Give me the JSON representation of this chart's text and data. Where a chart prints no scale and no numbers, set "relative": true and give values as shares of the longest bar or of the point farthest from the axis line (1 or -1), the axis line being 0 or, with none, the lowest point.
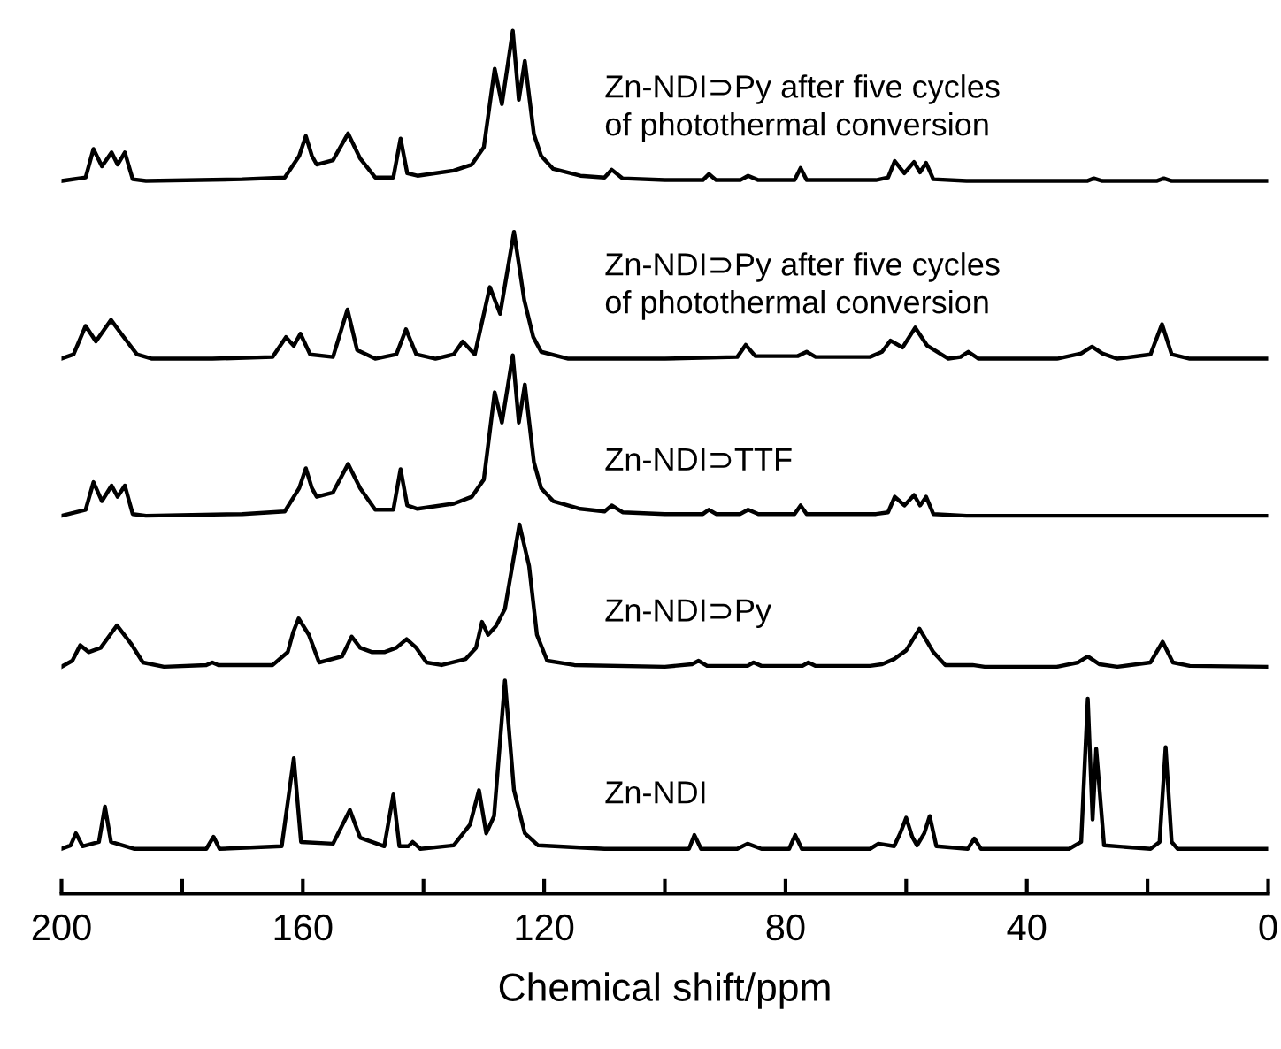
{
  "chart_data": {
    "type": "line",
    "relative": true,
    "xlabel": "Chemical shift/ppm",
    "xlim": [
      200,
      0
    ],
    "xticks": [
      200,
      {
        "value": 180,
        "label": null
      },
      160,
      {
        "value": 140,
        "label": null
      },
      120,
      {
        "value": 100,
        "label": null
      },
      80,
      {
        "value": 60,
        "label": null
      },
      40,
      {
        "value": 20,
        "label": null
      },
      0
    ],
    "legend": false,
    "grid": false,
    "marker": "none",
    "line_style": "solid",
    "series": [
      {
        "name": "Zn-NDI",
        "color": "#000000",
        "x": [
          200,
          198.5,
          197.6,
          196.5,
          193.8,
          192.8,
          191.8,
          188,
          176,
          174.8,
          173.8,
          163.5,
          161.5,
          160.3,
          155,
          152.2,
          150.5,
          146.5,
          145,
          144,
          142.5,
          141.8,
          140.5,
          135,
          132.3,
          130.8,
          129.6,
          128.3,
          126.5,
          125,
          123.2,
          121,
          110,
          96,
          95.1,
          94,
          88,
          86.3,
          84,
          79.4,
          78.4,
          77.3,
          66,
          64.6,
          62,
          61,
          60,
          59,
          58.2,
          57,
          56.1,
          55,
          49.8,
          48.7,
          47.6,
          33,
          31,
          29.9,
          29.1,
          28.5,
          27.2,
          19.5,
          18,
          17,
          16,
          15,
          0
        ],
        "values": [
          0.052,
          0.056,
          0.07,
          0.055,
          0.06,
          0.101,
          0.06,
          0.052,
          0.052,
          0.066,
          0.052,
          0.055,
          0.157,
          0.06,
          0.058,
          0.097,
          0.065,
          0.055,
          0.115,
          0.055,
          0.055,
          0.06,
          0.052,
          0.056,
          0.08,
          0.12,
          0.07,
          0.09,
          0.247,
          0.12,
          0.07,
          0.056,
          0.052,
          0.052,
          0.068,
          0.052,
          0.052,
          0.058,
          0.052,
          0.052,
          0.068,
          0.052,
          0.052,
          0.058,
          0.055,
          0.07,
          0.088,
          0.066,
          0.056,
          0.07,
          0.09,
          0.055,
          0.052,
          0.064,
          0.052,
          0.052,
          0.06,
          0.226,
          0.086,
          0.168,
          0.056,
          0.052,
          0.06,
          0.17,
          0.06,
          0.052,
          0.052
        ]
      },
      {
        "name": "Zn-NDI⊃Py",
        "color": "#000000",
        "x": [
          200,
          198.2,
          196.9,
          195.5,
          193.5,
          190.8,
          188.5,
          186.5,
          183,
          176,
          175,
          174,
          165,
          162.5,
          161.6,
          160.7,
          159,
          157.3,
          153.5,
          151.9,
          150.5,
          148.5,
          146.5,
          144.5,
          142.8,
          141.2,
          139.5,
          137,
          133,
          131.3,
          130.3,
          129.3,
          128,
          126.5,
          124.1,
          122.5,
          121.2,
          119.5,
          115,
          100,
          95.5,
          94.4,
          93,
          86.3,
          85.3,
          84,
          77.2,
          76.2,
          75,
          66,
          64,
          62,
          60,
          57.8,
          55.5,
          53.5,
          49,
          47,
          35,
          31.5,
          29.9,
          28,
          25,
          19.5,
          17.5,
          15.8,
          13,
          0
        ],
        "values": [
          0.263,
          0.27,
          0.288,
          0.28,
          0.285,
          0.311,
          0.29,
          0.268,
          0.263,
          0.265,
          0.268,
          0.265,
          0.265,
          0.28,
          0.303,
          0.319,
          0.3,
          0.268,
          0.275,
          0.298,
          0.285,
          0.28,
          0.28,
          0.285,
          0.295,
          0.285,
          0.268,
          0.265,
          0.272,
          0.285,
          0.315,
          0.3,
          0.31,
          0.33,
          0.428,
          0.38,
          0.3,
          0.27,
          0.265,
          0.263,
          0.266,
          0.27,
          0.264,
          0.264,
          0.268,
          0.264,
          0.264,
          0.268,
          0.264,
          0.264,
          0.266,
          0.272,
          0.282,
          0.307,
          0.28,
          0.265,
          0.265,
          0.263,
          0.263,
          0.268,
          0.275,
          0.266,
          0.263,
          0.268,
          0.292,
          0.268,
          0.264,
          0.263
        ]
      },
      {
        "name": "Zn-NDI⊃TTF",
        "color": "#000000",
        "x": [
          200,
          196,
          194.7,
          193.3,
          191.7,
          190.7,
          189.5,
          188.2,
          186,
          170,
          163,
          160.6,
          159.5,
          158.5,
          157.7,
          155,
          152.5,
          150.5,
          148,
          145,
          143.8,
          142.7,
          141,
          135,
          132,
          130,
          128.2,
          127,
          125.2,
          124.2,
          123.2,
          121.7,
          120.5,
          118.5,
          114,
          110,
          108.8,
          107,
          100,
          93.7,
          92.7,
          91.5,
          87.5,
          86.2,
          84.5,
          78.5,
          77.5,
          76.5,
          65,
          63,
          61.9,
          60.3,
          58.7,
          57.7,
          56.7,
          55.5,
          50,
          0
        ],
        "values": [
          0.438,
          0.445,
          0.477,
          0.455,
          0.473,
          0.46,
          0.473,
          0.44,
          0.438,
          0.44,
          0.443,
          0.47,
          0.493,
          0.47,
          0.46,
          0.465,
          0.498,
          0.47,
          0.445,
          0.445,
          0.492,
          0.45,
          0.446,
          0.452,
          0.46,
          0.48,
          0.581,
          0.546,
          0.624,
          0.546,
          0.59,
          0.5,
          0.47,
          0.455,
          0.446,
          0.443,
          0.45,
          0.442,
          0.44,
          0.44,
          0.445,
          0.44,
          0.44,
          0.445,
          0.44,
          0.44,
          0.45,
          0.44,
          0.44,
          0.442,
          0.46,
          0.45,
          0.462,
          0.45,
          0.46,
          0.44,
          0.438,
          0.438
        ]
      },
      {
        "name": "Zn-NDI⊃Py after five cycles of photothermal conversion",
        "color": "#000000",
        "x": [
          200,
          198,
          196,
          194.3,
          191.8,
          190,
          187.5,
          185,
          175,
          165,
          162.8,
          161.5,
          160.4,
          158.8,
          155,
          152.6,
          151,
          148,
          144.5,
          142.9,
          141.2,
          138,
          135,
          133.5,
          131.5,
          129,
          127.3,
          125,
          123.3,
          121.8,
          120.5,
          116,
          100,
          88,
          86.6,
          85,
          78,
          76.5,
          75,
          66,
          64,
          62.6,
          60.6,
          58.5,
          56.5,
          53,
          51,
          49.7,
          48,
          35,
          31,
          29.2,
          27.5,
          25,
          19.5,
          17.6,
          16,
          13,
          0
        ],
        "values": [
          0.62,
          0.625,
          0.658,
          0.64,
          0.665,
          0.648,
          0.625,
          0.62,
          0.62,
          0.622,
          0.645,
          0.635,
          0.649,
          0.625,
          0.622,
          0.677,
          0.63,
          0.62,
          0.625,
          0.654,
          0.625,
          0.62,
          0.625,
          0.64,
          0.625,
          0.703,
          0.672,
          0.767,
          0.688,
          0.645,
          0.628,
          0.62,
          0.62,
          0.622,
          0.636,
          0.623,
          0.623,
          0.628,
          0.622,
          0.622,
          0.628,
          0.641,
          0.633,
          0.656,
          0.635,
          0.62,
          0.622,
          0.628,
          0.62,
          0.62,
          0.626,
          0.634,
          0.626,
          0.62,
          0.625,
          0.66,
          0.625,
          0.62,
          0.62
        ]
      },
      {
        "name": "Zn-NDI⊃Py after five cycles of photothermal conversion",
        "color": "#000000",
        "x": [
          200,
          196,
          194.7,
          193.3,
          191.7,
          190.7,
          189.5,
          188.2,
          186,
          170,
          163,
          160.6,
          159.5,
          158.5,
          157.7,
          155,
          152.5,
          150.5,
          148,
          145,
          143.8,
          142.7,
          141,
          135,
          132,
          130,
          128.2,
          127,
          125.2,
          124.2,
          123.2,
          121.7,
          120.5,
          118.5,
          114,
          110,
          108.8,
          107,
          100,
          93.7,
          92.7,
          91.5,
          87.5,
          86.2,
          84.5,
          78.5,
          77.5,
          76.5,
          65,
          63,
          61.9,
          60.3,
          58.7,
          57.7,
          56.7,
          55.5,
          50,
          30,
          28.9,
          27.5,
          18.5,
          17.3,
          16,
          0
        ],
        "values": [
          0.826,
          0.83,
          0.863,
          0.843,
          0.859,
          0.845,
          0.859,
          0.828,
          0.826,
          0.828,
          0.83,
          0.855,
          0.878,
          0.855,
          0.845,
          0.85,
          0.881,
          0.852,
          0.83,
          0.83,
          0.875,
          0.835,
          0.832,
          0.838,
          0.845,
          0.865,
          0.956,
          0.915,
          1.0,
          0.92,
          0.965,
          0.88,
          0.855,
          0.84,
          0.832,
          0.83,
          0.839,
          0.829,
          0.827,
          0.827,
          0.834,
          0.827,
          0.827,
          0.832,
          0.827,
          0.827,
          0.841,
          0.827,
          0.827,
          0.83,
          0.849,
          0.835,
          0.848,
          0.836,
          0.847,
          0.828,
          0.826,
          0.826,
          0.829,
          0.826,
          0.826,
          0.829,
          0.826,
          0.826
        ]
      }
    ]
  }
}
